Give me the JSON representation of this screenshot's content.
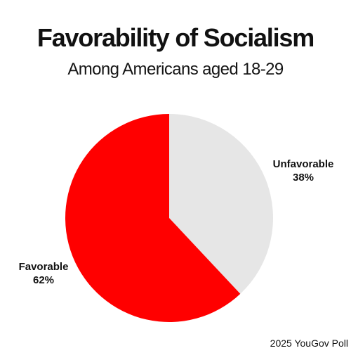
{
  "chart_data": {
    "type": "pie",
    "title": "Favorability of Socialism",
    "subtitle": "Among Americans aged 18-29",
    "slices": [
      {
        "label": "Unfavorable",
        "value": 38,
        "value_label": "38%",
        "color": "#e6e6e6"
      },
      {
        "label": "Favorable",
        "value": 62,
        "value_label": "62%",
        "color": "#ff0000"
      }
    ],
    "start_angle": "12 o'clock",
    "direction": "clockwise",
    "legend": "none",
    "source": "2025 YouGov Poll"
  }
}
